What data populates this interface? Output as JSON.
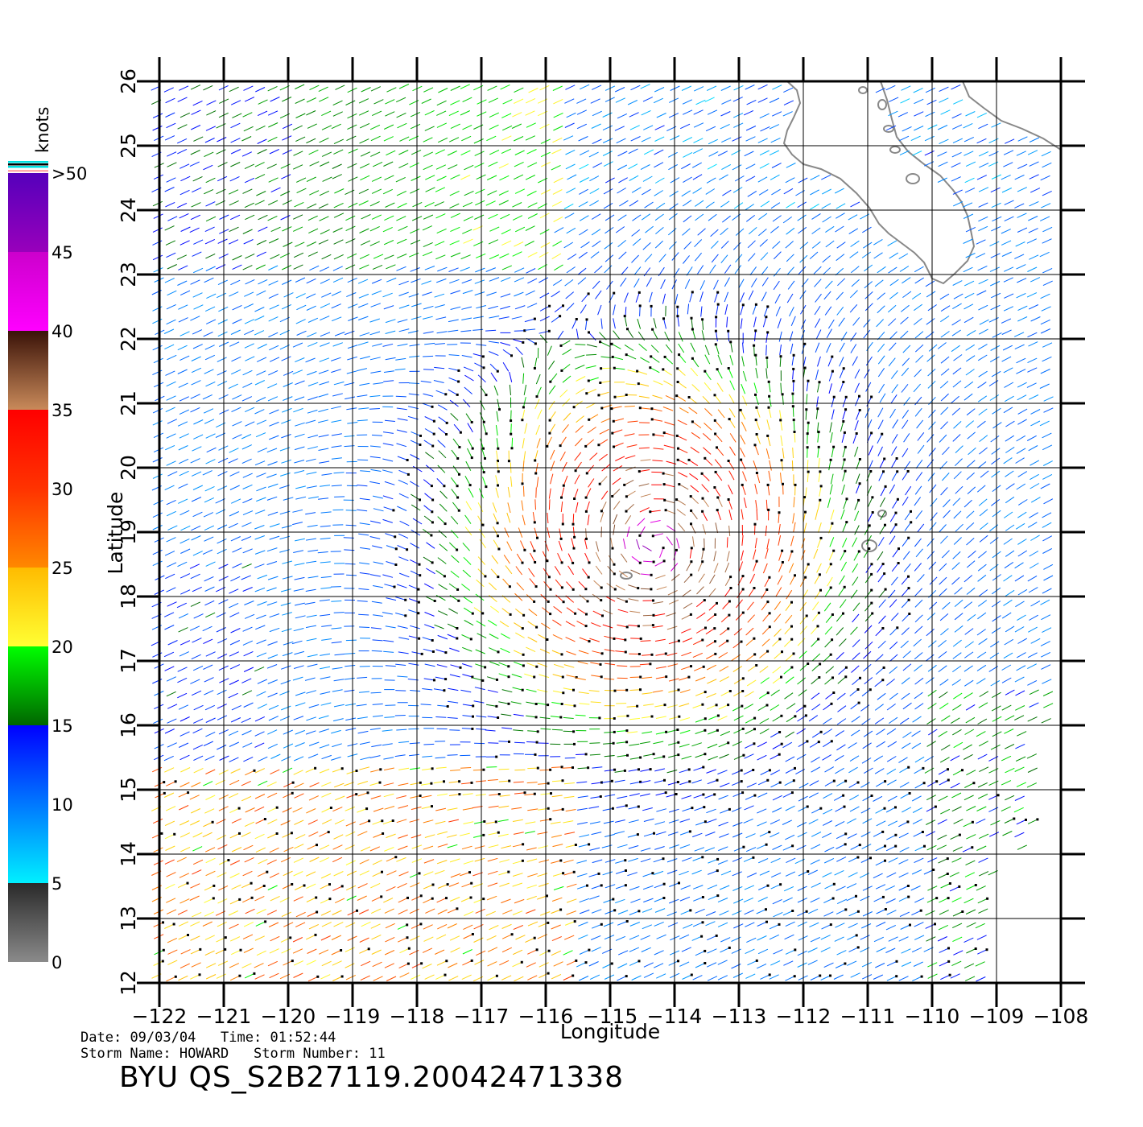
{
  "map": {
    "lon_range": [
      -122,
      -108
    ],
    "lat_range": [
      12,
      26
    ],
    "lon_ticks": [
      "-122",
      "-121",
      "-120",
      "-119",
      "-118",
      "-117",
      "-116",
      "-115",
      "-114",
      "-113",
      "-112",
      "-111",
      "-110",
      "-109",
      "-108"
    ],
    "lat_ticks": [
      "12",
      "13",
      "14",
      "15",
      "16",
      "17",
      "18",
      "19",
      "20",
      "21",
      "22",
      "23",
      "24",
      "25",
      "26"
    ],
    "xlabel": "Longitude",
    "ylabel": "Latitude",
    "land_color": "#888888",
    "storm_center": {
      "lon": -114.3,
      "lat": 18.8
    }
  },
  "colorbar": {
    "unit": "knots",
    "labels": [
      ">50",
      "45",
      "40",
      "35",
      "30",
      "25",
      "20",
      "15",
      "10",
      "5",
      "0"
    ],
    "bands": [
      {
        "from": 0,
        "to": 5,
        "colors": [
          "#8a8a8a",
          "#2a2a2a"
        ]
      },
      {
        "from": 5,
        "to": 15,
        "colors": [
          "#00f0ff",
          "#0000ff"
        ]
      },
      {
        "from": 15,
        "to": 20,
        "colors": [
          "#006600",
          "#00ff00"
        ]
      },
      {
        "from": 20,
        "to": 25,
        "colors": [
          "#ffff33",
          "#ffbb00"
        ]
      },
      {
        "from": 25,
        "to": 30,
        "colors": [
          "#ff8800",
          "#ff3300"
        ]
      },
      {
        "from": 30,
        "to": 35,
        "colors": [
          "#ff3300",
          "#ff0000"
        ]
      },
      {
        "from": 35,
        "to": 40,
        "colors": [
          "#c98a5a",
          "#3a1208"
        ]
      },
      {
        "from": 40,
        "to": 45,
        "colors": [
          "#ff00ff",
          "#cc00cc"
        ]
      },
      {
        "from": 45,
        "to": 50,
        "colors": [
          "#9900bb",
          "#5500bb"
        ]
      }
    ]
  },
  "info": {
    "date_label": "Date:",
    "date": "09/03/04",
    "time_label": "Time:",
    "time": "01:52:44",
    "storm_name_label": "Storm Name:",
    "storm_name": "HOWARD",
    "storm_number_label": "Storm Number:",
    "storm_number": "11"
  },
  "title": "BYU QS_S2B27119.20042471338"
}
